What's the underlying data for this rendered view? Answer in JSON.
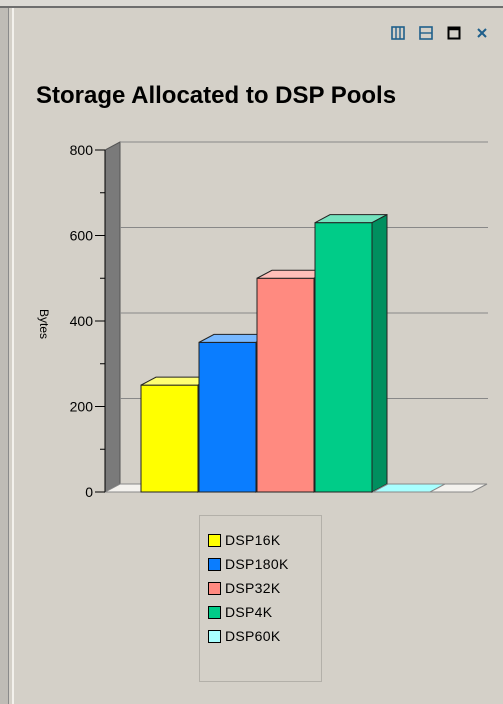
{
  "window": {
    "buttons": [
      {
        "name": "split-vertical-button",
        "icon": "split-vertical-icon"
      },
      {
        "name": "split-horizontal-button",
        "icon": "split-horizontal-icon"
      },
      {
        "name": "maximize-button",
        "icon": "maximize-icon"
      },
      {
        "name": "close-button",
        "icon": "close-icon"
      }
    ],
    "accent": "#1f5f8b"
  },
  "chart_data": {
    "type": "bar",
    "title": "Storage Allocated to DSP Pools",
    "ylabel": "Bytes",
    "xlabel": "",
    "ylim": [
      0,
      800
    ],
    "yticks": [
      "0",
      "200",
      "400",
      "600",
      "800"
    ],
    "grid": true,
    "legend_position": "bottom",
    "series": [
      {
        "name": "DSP16K",
        "value": 250,
        "color": "#ffff00"
      },
      {
        "name": "DSP180K",
        "value": 350,
        "color": "#0a7dff"
      },
      {
        "name": "DSP32K",
        "value": 500,
        "color": "#ff8a80"
      },
      {
        "name": "DSP4K",
        "value": 630,
        "color": "#00cc88"
      },
      {
        "name": "DSP60K",
        "value": 0,
        "color": "#a8ffff"
      }
    ]
  }
}
